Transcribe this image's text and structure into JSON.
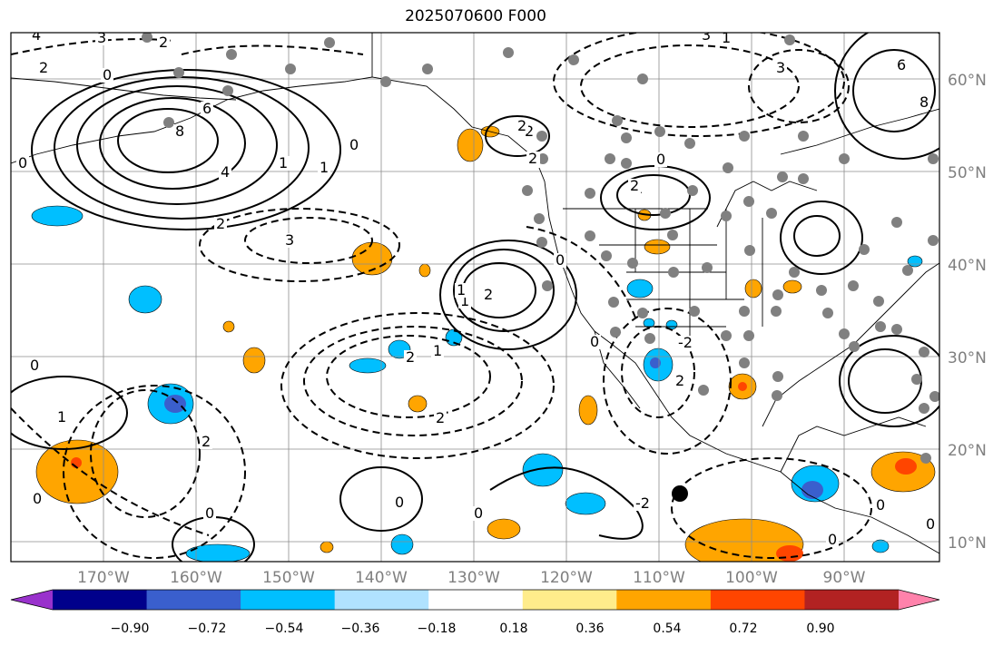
{
  "title": "2025070600 F000",
  "map": {
    "lat_labels": [
      "60°N",
      "50°N",
      "40°N",
      "30°N",
      "20°N",
      "10°N"
    ],
    "lon_labels": [
      "170°W",
      "160°W",
      "150°W",
      "140°W",
      "130°W",
      "120°W",
      "110°W",
      "100°W",
      "90°W"
    ],
    "contour_labels": [
      "4",
      "3",
      "2",
      "0",
      "2",
      "4",
      "6",
      "8",
      "0",
      "1",
      "1",
      "2",
      "0",
      "2",
      "2",
      "-2",
      "1",
      "0",
      "1",
      "0",
      "2",
      "2",
      "3",
      "2",
      "1",
      "2",
      "3",
      "0",
      "0",
      "0",
      "-2",
      "1",
      "2",
      "0",
      "1",
      "2",
      "2",
      "0",
      "2",
      "0",
      "0",
      "0",
      "1",
      "3",
      "6",
      "8",
      "0"
    ]
  },
  "colorbar": {
    "tick_labels": [
      "−0.90",
      "−0.72",
      "−0.54",
      "−0.36",
      "−0.18",
      "0.18",
      "0.36",
      "0.54",
      "0.72",
      "0.90"
    ],
    "colors": [
      "#9932cc",
      "#00008b",
      "#3a5fcd",
      "#00bfff",
      "#b0e2ff",
      "#ffffff",
      "#ffec8b",
      "#ffa500",
      "#ff4500",
      "#b22222",
      "#ff82ab"
    ]
  }
}
